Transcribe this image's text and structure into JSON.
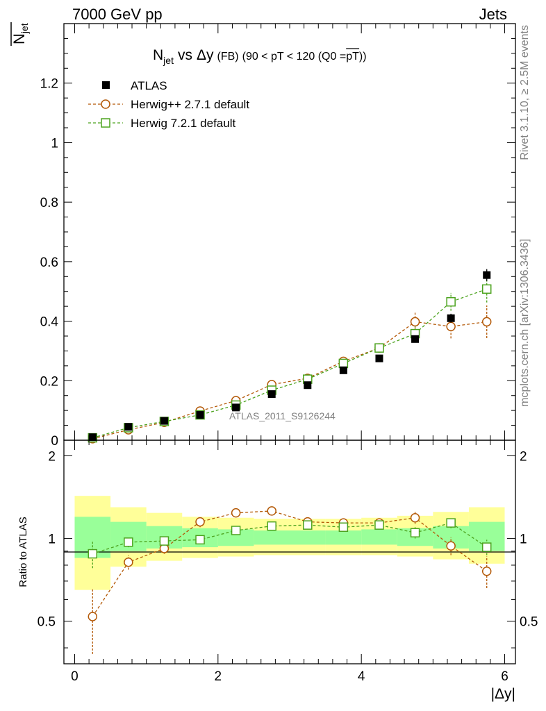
{
  "header": {
    "left": "7000 GeV pp",
    "right": "Jets"
  },
  "side_labels": {
    "rivet": "Rivet 3.1.10, ≥ 2.5M events",
    "mcplots": "mcplots.cern.ch [arXiv:1306.3436]"
  },
  "watermark": "ATLAS_2011_S9126244",
  "chart_data": [
    {
      "type": "scatter",
      "title": "N_jet vs Δy (FB) (90 < pT < 120 (Q0 = pT))",
      "title_parts": {
        "main": "N",
        "sub": "jet",
        "vs": "vs",
        "delta_y": "Δy",
        "fb": "(FB)",
        "cut": "(90 < pT < 120 (Q0 =",
        "pt_bar": "pT",
        "close": "))"
      },
      "ylabel": "N_jet (overlined)",
      "ylabel_parts": {
        "main": "N",
        "sub": "jet"
      },
      "xlim": [
        -0.15,
        6.15
      ],
      "ylim": [
        0,
        1.4
      ],
      "yticks": [
        0,
        0.2,
        0.4,
        0.6,
        0.8,
        1,
        1.2
      ],
      "ytick_labels": [
        "0",
        "0.2",
        "0.4",
        "0.6",
        "0.8",
        "1",
        "1.2"
      ],
      "legend_position": "top-left",
      "x": [
        0.25,
        0.75,
        1.25,
        1.75,
        2.25,
        2.75,
        3.25,
        3.75,
        4.25,
        4.75,
        5.25,
        5.75
      ],
      "series": [
        {
          "name": "ATLAS",
          "marker": "filled-square",
          "color": "#000000",
          "values": [
            0.01,
            0.045,
            0.065,
            0.085,
            0.11,
            0.155,
            0.185,
            0.235,
            0.275,
            0.34,
            0.41,
            0.555
          ],
          "errors": [
            0.002,
            0.003,
            0.004,
            0.004,
            0.005,
            0.006,
            0.007,
            0.008,
            0.009,
            0.011,
            0.015,
            0.02
          ]
        },
        {
          "name": "Herwig++ 2.7.1 default",
          "marker": "open-circle",
          "line": "dashed",
          "color": "#b35806",
          "values": [
            0.005,
            0.035,
            0.06,
            0.098,
            0.133,
            0.187,
            0.208,
            0.265,
            0.31,
            0.398,
            0.382,
            0.398
          ],
          "errors": [
            0.001,
            0.003,
            0.004,
            0.006,
            0.008,
            0.01,
            0.01,
            0.012,
            0.015,
            0.035,
            0.04,
            0.055
          ]
        },
        {
          "name": "Herwig 7.2.1 default",
          "marker": "open-square",
          "line": "dashed",
          "color": "#4ca31e",
          "values": [
            0.008,
            0.042,
            0.063,
            0.085,
            0.118,
            0.168,
            0.205,
            0.258,
            0.31,
            0.358,
            0.465,
            0.508
          ],
          "errors": [
            0.001,
            0.003,
            0.004,
            0.005,
            0.006,
            0.008,
            0.009,
            0.011,
            0.013,
            0.025,
            0.03,
            0.045
          ]
        }
      ]
    },
    {
      "type": "scatter",
      "ylabel": "Ratio to ATLAS",
      "xlabel": "|Δy|",
      "xlim": [
        -0.15,
        6.15
      ],
      "ylim": [
        0.35,
        2.28
      ],
      "xticks": [
        0,
        2,
        4,
        6
      ],
      "xtick_labels": [
        "0",
        "2",
        "4",
        "6"
      ],
      "yticks": [
        0.5,
        1,
        2
      ],
      "ytick_labels": [
        "0.5",
        "1",
        "2"
      ],
      "bands": {
        "bin_edges": [
          0,
          0.5,
          1,
          1.5,
          2,
          2.5,
          3,
          3.5,
          4,
          4.5,
          5,
          5.5,
          6
        ],
        "yellow": {
          "color": "#ffff99",
          "lo": [
            0.65,
            0.79,
            0.83,
            0.85,
            0.86,
            0.87,
            0.87,
            0.87,
            0.87,
            0.86,
            0.84,
            0.81
          ],
          "hi": [
            1.43,
            1.3,
            1.24,
            1.2,
            1.19,
            1.18,
            1.18,
            1.18,
            1.19,
            1.21,
            1.25,
            1.3
          ]
        },
        "green": {
          "color": "#99ff99",
          "lo": [
            0.85,
            0.9,
            0.92,
            0.93,
            0.94,
            0.95,
            0.95,
            0.95,
            0.95,
            0.94,
            0.92,
            0.9
          ],
          "hi": [
            1.2,
            1.15,
            1.11,
            1.09,
            1.08,
            1.07,
            1.07,
            1.07,
            1.08,
            1.09,
            1.11,
            1.15
          ]
        }
      },
      "x": [
        0.25,
        0.75,
        1.25,
        1.75,
        2.25,
        2.75,
        3.25,
        3.75,
        4.25,
        4.75,
        5.25,
        5.75
      ],
      "series": [
        {
          "name": "Herwig++ 2.7.1 default",
          "marker": "open-circle",
          "line": "dashed",
          "color": "#b35806",
          "values": [
            0.52,
            0.82,
            0.92,
            1.15,
            1.24,
            1.26,
            1.15,
            1.14,
            1.14,
            1.19,
            0.94,
            0.76
          ],
          "errors": [
            0.14,
            0.05,
            0.04,
            0.05,
            0.04,
            0.04,
            0.04,
            0.04,
            0.04,
            0.06,
            0.07,
            0.1
          ]
        },
        {
          "name": "Herwig 7.2.1 default",
          "marker": "open-square",
          "line": "dashed",
          "color": "#4ca31e",
          "values": [
            0.88,
            0.97,
            0.98,
            0.99,
            1.07,
            1.11,
            1.12,
            1.1,
            1.12,
            1.05,
            1.14,
            0.93
          ],
          "errors": [
            0.1,
            0.04,
            0.03,
            0.03,
            0.03,
            0.03,
            0.03,
            0.03,
            0.03,
            0.05,
            0.05,
            0.06
          ]
        }
      ]
    }
  ]
}
